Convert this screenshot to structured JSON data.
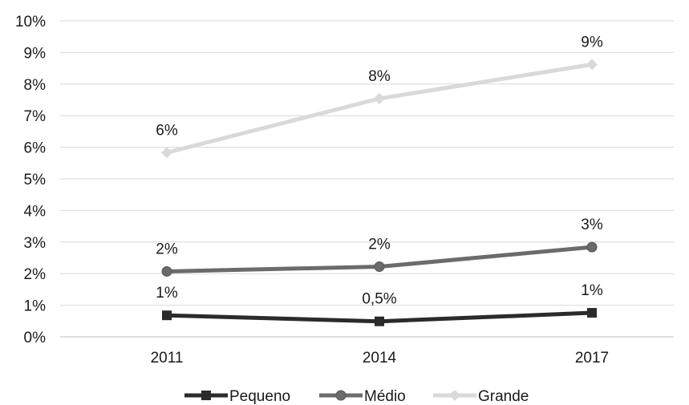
{
  "chart_data": {
    "type": "line",
    "categories": [
      "2011",
      "2014",
      "2017"
    ],
    "ylim": [
      0,
      0.1
    ],
    "y_ticks": [
      {
        "value": 0.0,
        "label": "0%"
      },
      {
        "value": 0.01,
        "label": "1%"
      },
      {
        "value": 0.02,
        "label": "2%"
      },
      {
        "value": 0.03,
        "label": "3%"
      },
      {
        "value": 0.04,
        "label": "4%"
      },
      {
        "value": 0.05,
        "label": "5%"
      },
      {
        "value": 0.06,
        "label": "6%"
      },
      {
        "value": 0.07,
        "label": "7%"
      },
      {
        "value": 0.08,
        "label": "8%"
      },
      {
        "value": 0.09,
        "label": "9%"
      },
      {
        "value": 0.1,
        "label": "10%"
      }
    ],
    "grid": true,
    "legend_position": "bottom",
    "series": [
      {
        "name": "Pequeno",
        "values": [
          0.0068,
          0.0049,
          0.0076
        ],
        "labels": [
          "1%",
          "0,5%",
          "1%"
        ],
        "color": "#2b2b2b",
        "marker": "square"
      },
      {
        "name": "Médio",
        "values": [
          0.0207,
          0.0222,
          0.0284
        ],
        "labels": [
          "2%",
          "2%",
          "3%"
        ],
        "color": "#6b6b6b",
        "marker": "circle"
      },
      {
        "name": "Grande",
        "values": [
          0.0583,
          0.0754,
          0.0862
        ],
        "labels": [
          "6%",
          "8%",
          "9%"
        ],
        "color": "#d9d9d9",
        "marker": "diamond"
      }
    ]
  }
}
